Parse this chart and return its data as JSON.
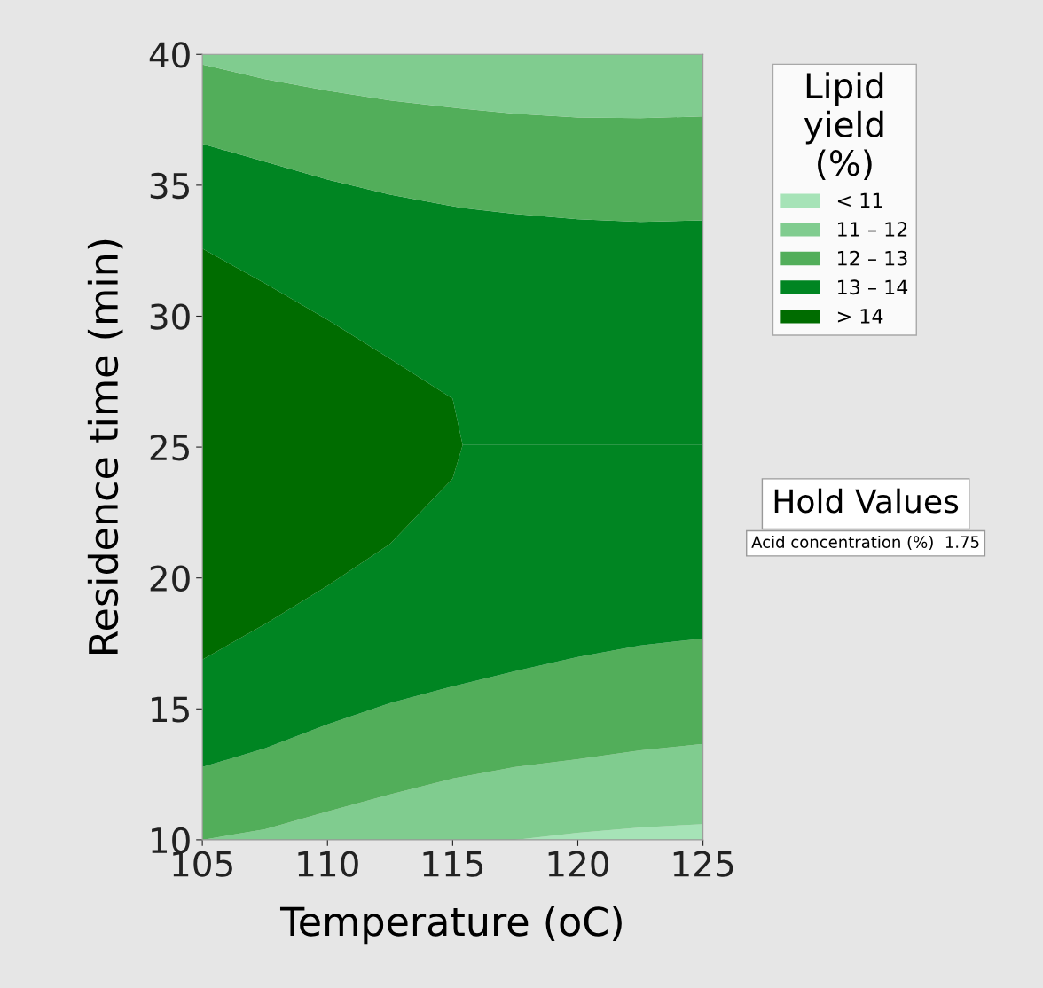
{
  "chart_data": {
    "type": "area",
    "xlabel": "Temperature (oC)",
    "ylabel": "Residence time (min)",
    "legend_title": "Lipid\nyield\n(%)",
    "legend": "right",
    "x": [
      105,
      107.5,
      110,
      112.5,
      115,
      115.4,
      117.5,
      120,
      122.5,
      125
    ],
    "xlim": [
      105,
      125
    ],
    "xticks": [
      105,
      110,
      115,
      120,
      125
    ],
    "ylim": [
      10,
      40
    ],
    "yticks": [
      10,
      15,
      20,
      25,
      30,
      35,
      40
    ],
    "grid": false,
    "series": [
      {
        "name": "< 11",
        "color": "#a6e3b7",
        "values": [
          10,
          10,
          10,
          10,
          10,
          10,
          10,
          10.27,
          10.47,
          10.6
        ]
      },
      {
        "name": "11 – 12",
        "color": "#80cc8f",
        "values": [
          10,
          10.4,
          11.08,
          11.73,
          12.34,
          12.41,
          12.78,
          13.08,
          13.42,
          13.66
        ]
      },
      {
        "name": "12 – 13",
        "color": "#52ae5a",
        "values": [
          12.78,
          13.49,
          14.41,
          15.22,
          15.86,
          15.95,
          16.44,
          16.98,
          17.42,
          17.69
        ]
      },
      {
        "name": "13 – 14",
        "color": "#008522",
        "values": [
          16.88,
          18.24,
          19.7,
          21.3,
          23.8,
          25.08,
          25.08,
          25.08,
          25.08,
          25.08
        ]
      },
      {
        "name": "> 14",
        "color": "#006c00",
        "values": [
          32.58,
          31.25,
          29.86,
          28.37,
          26.85,
          25.08,
          25.08,
          25.08,
          25.08,
          25.08
        ]
      },
      {
        "color": "#008522",
        "values": [
          36.58,
          35.9,
          35.22,
          34.64,
          34.2,
          34.13,
          33.9,
          33.7,
          33.6,
          33.66
        ]
      },
      {
        "color": "#52ae5a",
        "values": [
          39.61,
          39.05,
          38.61,
          38.24,
          37.97,
          37.93,
          37.73,
          37.59,
          37.56,
          37.63
        ]
      },
      {
        "color": "#80cc8f",
        "values": [
          40,
          40,
          40,
          40,
          40,
          40,
          40,
          40,
          40,
          40
        ]
      }
    ],
    "annotations": [
      "Hold Values",
      "Acid concentration (%)  1.75"
    ]
  }
}
